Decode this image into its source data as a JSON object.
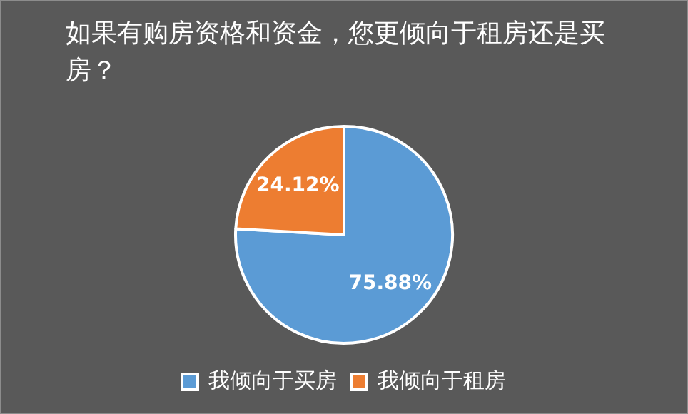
{
  "chart_data": {
    "type": "pie",
    "title": "如果有购房资格和资金，您更倾向于租房还是买房？",
    "categories": [
      "我倾向于买房",
      "我倾向于租房"
    ],
    "values": [
      75.88,
      24.12
    ],
    "value_labels": [
      "75.88%",
      "24.12%"
    ],
    "colors": [
      "#5b9bd5",
      "#ed7d31"
    ],
    "legend": "bottom"
  }
}
